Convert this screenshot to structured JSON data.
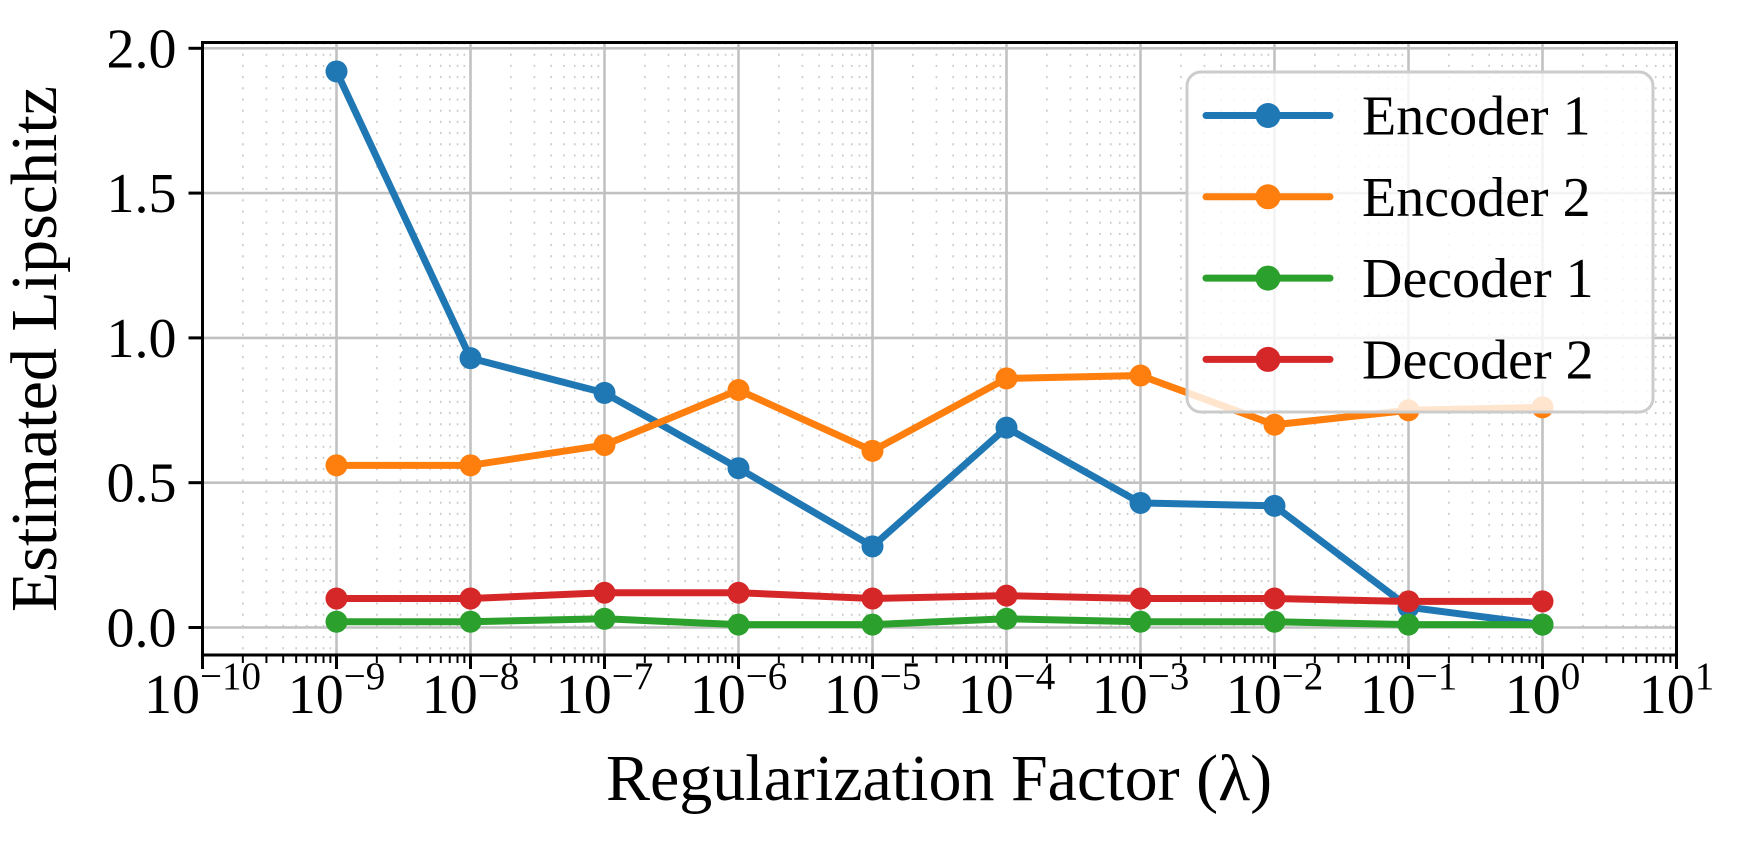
{
  "chart_data": {
    "type": "line",
    "title": "",
    "xlabel": "Regularization Factor (λ)",
    "ylabel": "Estimated Lipschitz",
    "x_scale": "log",
    "x_exponents": [
      -9,
      -8,
      -7,
      -6,
      -5,
      -4,
      -3,
      -2,
      -1,
      0
    ],
    "x_tick_exponents": [
      -10,
      -9,
      -8,
      -7,
      -6,
      -5,
      -4,
      -3,
      -2,
      -1,
      0,
      1
    ],
    "x_tick_labels": [
      "10⁻¹⁰",
      "10⁻⁹",
      "10⁻⁸",
      "10⁻⁷",
      "10⁻⁶",
      "10⁻⁵",
      "10⁻⁴",
      "10⁻³",
      "10⁻²",
      "10⁻¹",
      "10⁰",
      "10¹"
    ],
    "xlim_exponents": [
      -10,
      1
    ],
    "y_ticks": [
      0.0,
      0.5,
      1.0,
      1.5,
      2.0
    ],
    "y_tick_labels": [
      "0.0",
      "0.5",
      "1.0",
      "1.5",
      "2.0"
    ],
    "ylim": [
      -0.095,
      2.02
    ],
    "grid": {
      "major": true,
      "minor_x": true,
      "minor_style": "dotted"
    },
    "legend_position": "upper right",
    "series": [
      {
        "name": "Encoder 1",
        "color": "#1f77b4",
        "values": [
          1.92,
          0.93,
          0.81,
          0.55,
          0.28,
          0.69,
          0.43,
          0.42,
          0.07,
          0.01
        ]
      },
      {
        "name": "Encoder 2",
        "color": "#ff7f0e",
        "values": [
          0.56,
          0.56,
          0.63,
          0.82,
          0.61,
          0.86,
          0.87,
          0.7,
          0.75,
          0.76
        ]
      },
      {
        "name": "Decoder 1",
        "color": "#2ca02c",
        "values": [
          0.02,
          0.02,
          0.03,
          0.01,
          0.01,
          0.03,
          0.02,
          0.02,
          0.01,
          0.01
        ]
      },
      {
        "name": "Decoder 2",
        "color": "#d62728",
        "values": [
          0.1,
          0.1,
          0.12,
          0.12,
          0.1,
          0.11,
          0.1,
          0.1,
          0.09,
          0.09
        ]
      }
    ]
  }
}
